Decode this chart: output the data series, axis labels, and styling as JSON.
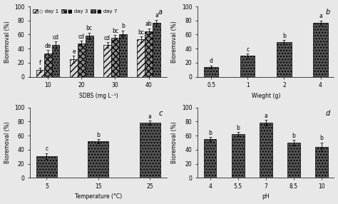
{
  "panel_a": {
    "xlabel": "SDBS (mg L⁻¹)",
    "ylabel": "Bioremoval (%)",
    "label": "a",
    "categories": [
      "10",
      "20",
      "30",
      "40"
    ],
    "day1_vals": [
      10,
      25,
      45,
      53
    ],
    "day1_err": [
      3,
      5,
      4,
      4
    ],
    "day3_vals": [
      33,
      47,
      55,
      65
    ],
    "day3_err": [
      5,
      4,
      4,
      4
    ],
    "day7_vals": [
      45,
      58,
      61,
      77
    ],
    "day7_err": [
      5,
      5,
      5,
      4
    ],
    "day1_letters": [
      "f",
      "e",
      "cd",
      "bc"
    ],
    "day3_letters": [
      "de",
      "cd",
      "bc",
      "ab"
    ],
    "day7_letters": [
      "cd",
      "bc",
      "b",
      "a"
    ],
    "ylim": [
      0,
      100
    ],
    "yticks": [
      0,
      20,
      40,
      60,
      80,
      100
    ]
  },
  "panel_b": {
    "xlabel": "Wieght (g)",
    "ylabel": "Bioremoval (%)",
    "label": "b",
    "categories": [
      "0.5",
      "1",
      "2",
      "4"
    ],
    "vals": [
      14,
      30,
      49,
      77
    ],
    "errs": [
      2,
      3,
      3,
      3
    ],
    "letters": [
      "d",
      "c",
      "b",
      "a"
    ],
    "ylim": [
      0,
      100
    ],
    "yticks": [
      0,
      20,
      40,
      60,
      80,
      100
    ]
  },
  "panel_c": {
    "xlabel": "Temperature (°C)",
    "ylabel": "Bioremoval (%)",
    "label": "c",
    "categories": [
      "5",
      "15",
      "25"
    ],
    "vals": [
      31,
      52,
      78
    ],
    "errs": [
      4,
      3,
      3
    ],
    "letters": [
      "c",
      "b",
      "a"
    ],
    "ylim": [
      0,
      100
    ],
    "yticks": [
      0,
      20,
      40,
      60,
      80,
      100
    ]
  },
  "panel_d": {
    "xlabel": "pH",
    "ylabel": "Bioremoval (%)",
    "label": "d",
    "categories": [
      "4",
      "5.5",
      "7",
      "8.5",
      "10"
    ],
    "vals": [
      55,
      62,
      78,
      50,
      44
    ],
    "errs": [
      3,
      3,
      4,
      4,
      6
    ],
    "letters": [
      "b",
      "b",
      "a",
      "b",
      "b"
    ],
    "ylim": [
      0,
      100
    ],
    "yticks": [
      0,
      20,
      40,
      60,
      80,
      100
    ]
  },
  "bar_color_dark": "#555555",
  "bar_color_day1": "#d8d8d8",
  "bar_color_day3": "#888888",
  "figsize": [
    4.74,
    2.86
  ],
  "dpi": 100
}
